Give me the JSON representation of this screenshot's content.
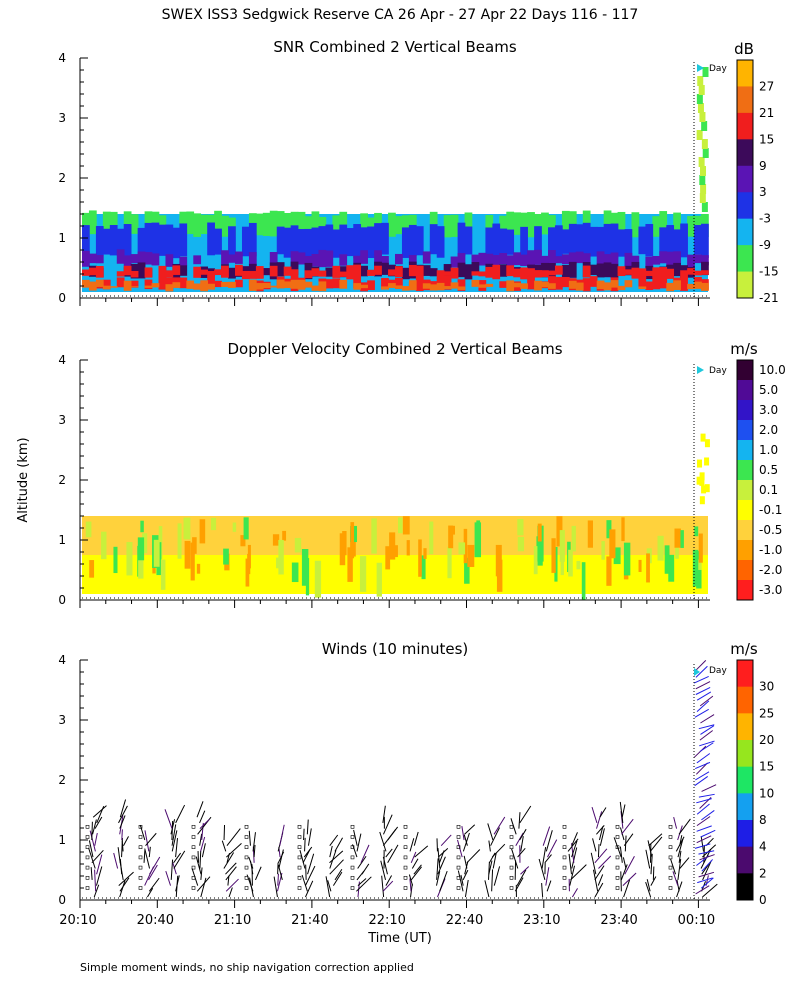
{
  "title": "SWEX ISS3 Sedgwick Reserve CA  26 Apr - 27 Apr 22 Days 116 - 117",
  "ylabel": "Altitude (km)",
  "xlabel": "Time (UT)",
  "footnote": "Simple moment winds, no ship navigation correction applied",
  "day_marker": "Day",
  "colors": {
    "snr": [
      "#c8f03c",
      "#3ce650",
      "#14b4f0",
      "#1e32e6",
      "#5a14b4",
      "#3c0a5a",
      "#f01e1e",
      "#f06e14",
      "#ffb400"
    ],
    "vel": [
      "#ff1e1e",
      "#ff6400",
      "#ffa000",
      "#ffd23c",
      "#ffff00",
      "#c8f03c",
      "#3ce650",
      "#14b4f0",
      "#1e50f0",
      "#3214c8",
      "#500a96",
      "#320032"
    ],
    "wind": [
      "#000000",
      "#4b0a6e",
      "#1e1ee6",
      "#14a0f0",
      "#1ee664",
      "#96e61e",
      "#ffb400",
      "#ff6400",
      "#ff1e1e"
    ]
  },
  "chart_data": [
    {
      "type": "heatmap",
      "title": "SNR Combined 2 Vertical Beams",
      "unit": "dB",
      "x_ticks": [
        "20:10",
        "20:40",
        "21:10",
        "21:40",
        "22:10",
        "22:40",
        "23:10",
        "23:40",
        "00:10"
      ],
      "y_ticks": [
        "0",
        "1",
        "2",
        "3",
        "4"
      ],
      "ylim": [
        0,
        4
      ],
      "colorbar_ticks": [
        "27",
        "21",
        "15",
        "9",
        "3",
        "-3",
        "-9",
        "-15",
        "-21"
      ],
      "value_range": [
        -24,
        30
      ],
      "data_top_km": 1.4
    },
    {
      "type": "heatmap",
      "title": "Doppler Velocity Combined 2 Vertical Beams",
      "unit": "m/s",
      "x_ticks": [
        "20:10",
        "20:40",
        "21:10",
        "21:40",
        "22:10",
        "22:40",
        "23:10",
        "23:40",
        "00:10"
      ],
      "y_ticks": [
        "0",
        "1",
        "2",
        "3",
        "4"
      ],
      "ylim": [
        0,
        4
      ],
      "colorbar_ticks": [
        "10.0",
        "5.0",
        "3.0",
        "2.0",
        "1.0",
        "0.5",
        "0.1",
        "-0.1",
        "-0.5",
        "-1.0",
        "-2.0",
        "-3.0"
      ],
      "data_top_km": 1.4
    },
    {
      "type": "scatter",
      "title": "Winds (10 minutes)",
      "unit": "m/s",
      "x_ticks": [
        "20:10",
        "20:40",
        "21:10",
        "21:40",
        "22:10",
        "22:40",
        "23:10",
        "23:40",
        "00:10"
      ],
      "y_ticks": [
        "0",
        "1",
        "2",
        "3",
        "4"
      ],
      "ylim": [
        0,
        4
      ],
      "colorbar_ticks": [
        "30",
        "25",
        "20",
        "15",
        "10",
        "8",
        "4",
        "2",
        "0"
      ],
      "data_top_km": 1.4
    }
  ]
}
